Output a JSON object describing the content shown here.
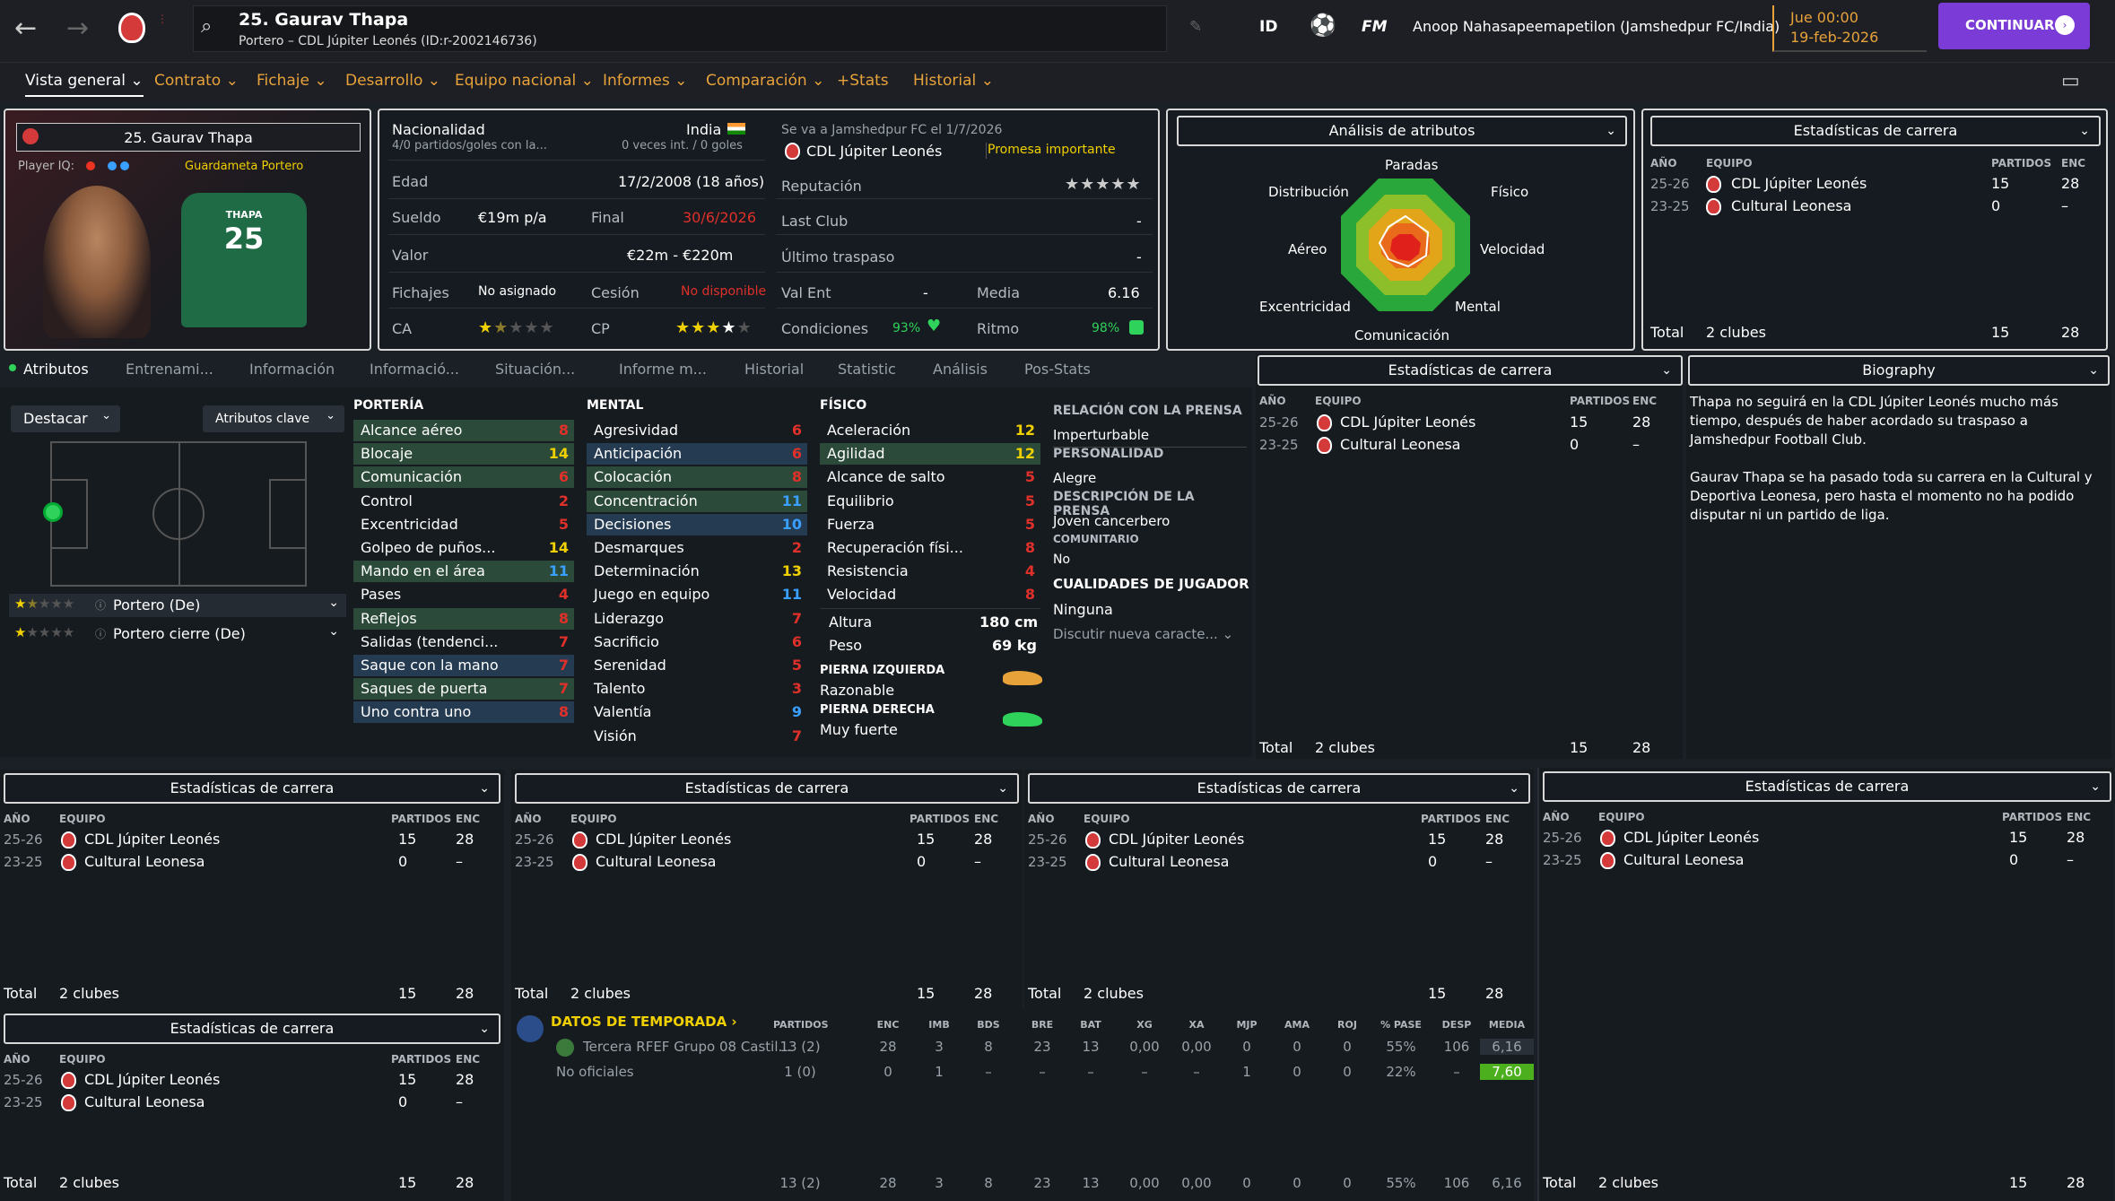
{
  "header": {
    "title": "25. Gaurav Thapa",
    "subtitle": "Portero – CDL Júpiter Leonés (ID:r-2002146736)",
    "id_label": "ID",
    "fm_label": "FM",
    "manager": "Anoop Nahasapeemapetilon (Jamshedpur FC/India)",
    "date_line1": "Jue 00:00",
    "date_line2": "19-feb-2026",
    "continue": "CONTINUAR"
  },
  "tabs": [
    "Vista general",
    "Contrato",
    "Fichaje",
    "Desarrollo",
    "Equipo nacional",
    "Informes",
    "Comparación",
    "+Stats",
    "Historial"
  ],
  "profile": {
    "name_box": "25. Gaurav Thapa",
    "player_iq": "Player IQ:",
    "role": "Guardameta Portero",
    "shirt_name": "THAPA",
    "shirt_number": "25"
  },
  "info": {
    "nat_label": "Nacionalidad",
    "nat_value": "India",
    "nat_sub": "4/0 partidos/goles con la...",
    "nat_sub2": "0 veces int. / 0 goles",
    "age_label": "Edad",
    "age_value": "17/2/2008 (18 años)",
    "wage_label": "Sueldo",
    "wage_value": "€19m p/a",
    "final_label": "Final",
    "final_value": "30/6/2026",
    "value_label": "Valor",
    "value_value": "€22m - €220m",
    "fichajes_label": "Fichajes",
    "fichajes_value": "No asignado",
    "cesion_label": "Cesión",
    "cesion_value": "No disponible",
    "ca_label": "CA",
    "cp_label": "CP",
    "transfer_line": "Se va a Jamshedpur FC el 1/7/2026",
    "club": "CDL Júpiter Leonés",
    "promise": "Promesa importante",
    "rep_label": "Reputación",
    "lastclub_label": "Last Club",
    "lastclub_value": "-",
    "lasttransfer_label": "Último traspaso",
    "lasttransfer_value": "-",
    "valent_label": "Val Ent",
    "valent_value": "-",
    "media_label": "Media",
    "media_value": "6.16",
    "cond_label": "Condiciones",
    "cond_value": "93%",
    "ritmo_label": "Ritmo",
    "ritmo_value": "98%"
  },
  "radar": {
    "title": "Análisis de atributos",
    "labels": [
      "Paradas",
      "Físico",
      "Velocidad",
      "Mental",
      "Comunicación",
      "Excentricidad",
      "Aéreo",
      "Distribución"
    ]
  },
  "career": {
    "title": "Estadísticas de carrera",
    "col_year": "AÑO",
    "col_team": "EQUIPO",
    "col_apps": "PARTIDOS",
    "col_enc": "ENC",
    "rows": [
      {
        "year": "25-26",
        "team": "CDL Júpiter Leonés",
        "apps": "15",
        "enc": "28"
      },
      {
        "year": "23-25",
        "team": "Cultural Leonesa",
        "apps": "0",
        "enc": "–"
      }
    ],
    "total_label": "Total",
    "total_clubs": "2 clubes",
    "total_apps": "15",
    "total_enc": "28"
  },
  "subtabs": [
    "Atributos",
    "Entrenami...",
    "Información",
    "Informació...",
    "Situación...",
    "Informe m...",
    "Historial",
    "Statistic",
    "Análisis",
    "Pos-Stats"
  ],
  "attrs_panel": {
    "highlight": "Destacar",
    "key_attrs": "Atributos clave",
    "role1": "Portero (De)",
    "role2": "Portero cierre (De)"
  },
  "porteria": {
    "title": "PORTERÍA",
    "items": [
      {
        "n": "Alcance aéreo",
        "v": "8",
        "c": "red",
        "h": "hl"
      },
      {
        "n": "Blocaje",
        "v": "14",
        "c": "yel",
        "h": "hl"
      },
      {
        "n": "Comunicación",
        "v": "6",
        "c": "red",
        "h": "hl"
      },
      {
        "n": "Control",
        "v": "2",
        "c": "red",
        "h": ""
      },
      {
        "n": "Excentricidad",
        "v": "5",
        "c": "red",
        "h": ""
      },
      {
        "n": "Golpeo de puños...",
        "v": "14",
        "c": "yel",
        "h": ""
      },
      {
        "n": "Mando en el área",
        "v": "11",
        "c": "blu",
        "h": "hl"
      },
      {
        "n": "Pases",
        "v": "4",
        "c": "red",
        "h": ""
      },
      {
        "n": "Reflejos",
        "v": "8",
        "c": "red",
        "h": "hl"
      },
      {
        "n": "Salidas (tendenci...",
        "v": "7",
        "c": "red",
        "h": ""
      },
      {
        "n": "Saque con la mano",
        "v": "7",
        "c": "red",
        "h": "hlb"
      },
      {
        "n": "Saques de puerta",
        "v": "7",
        "c": "red",
        "h": "hl"
      },
      {
        "n": "Uno contra uno",
        "v": "8",
        "c": "red",
        "h": "hlb"
      }
    ]
  },
  "mental": {
    "title": "MENTAL",
    "items": [
      {
        "n": "Agresividad",
        "v": "6",
        "c": "red",
        "h": ""
      },
      {
        "n": "Anticipación",
        "v": "6",
        "c": "red",
        "h": "hlb"
      },
      {
        "n": "Colocación",
        "v": "8",
        "c": "red",
        "h": "hl"
      },
      {
        "n": "Concentración",
        "v": "11",
        "c": "blu",
        "h": "hl"
      },
      {
        "n": "Decisiones",
        "v": "10",
        "c": "blu",
        "h": "hlb"
      },
      {
        "n": "Desmarques",
        "v": "2",
        "c": "red",
        "h": ""
      },
      {
        "n": "Determinación",
        "v": "13",
        "c": "yel",
        "h": ""
      },
      {
        "n": "Juego en equipo",
        "v": "11",
        "c": "blu",
        "h": ""
      },
      {
        "n": "Liderazgo",
        "v": "7",
        "c": "red",
        "h": ""
      },
      {
        "n": "Sacrificio",
        "v": "6",
        "c": "red",
        "h": ""
      },
      {
        "n": "Serenidad",
        "v": "5",
        "c": "red",
        "h": ""
      },
      {
        "n": "Talento",
        "v": "3",
        "c": "red",
        "h": ""
      },
      {
        "n": "Valentía",
        "v": "9",
        "c": "blu",
        "h": ""
      },
      {
        "n": "Visión",
        "v": "7",
        "c": "red",
        "h": ""
      }
    ]
  },
  "fisico": {
    "title": "FÍSICO",
    "items": [
      {
        "n": "Aceleración",
        "v": "12",
        "c": "yel",
        "h": ""
      },
      {
        "n": "Agilidad",
        "v": "12",
        "c": "yel",
        "h": "hl"
      },
      {
        "n": "Alcance de salto",
        "v": "5",
        "c": "red",
        "h": ""
      },
      {
        "n": "Equilibrio",
        "v": "5",
        "c": "red",
        "h": ""
      },
      {
        "n": "Fuerza",
        "v": "5",
        "c": "red",
        "h": ""
      },
      {
        "n": "Recuperación físi...",
        "v": "8",
        "c": "red",
        "h": ""
      },
      {
        "n": "Resistencia",
        "v": "4",
        "c": "red",
        "h": ""
      },
      {
        "n": "Velocidad",
        "v": "8",
        "c": "red",
        "h": ""
      }
    ],
    "height_label": "Altura",
    "height": "180 cm",
    "weight_label": "Peso",
    "weight": "69 kg",
    "left_foot_label": "PIERNA IZQUIERDA",
    "left_foot": "Razonable",
    "right_foot_label": "PIERNA DERECHA",
    "right_foot": "Muy fuerte"
  },
  "press": {
    "rel_label": "RELACIÓN CON LA PRENSA",
    "rel": "Imperturbable",
    "pers_label": "PERSONALIDAD",
    "pers": "Alegre",
    "desc_label": "DESCRIPCIÓN DE LA PRENSA",
    "desc": "Joven cancerbero",
    "com_label": "COMUNITARIO",
    "com": "No",
    "qual_label": "CUALIDADES DE JUGADOR",
    "qual": "Ninguna",
    "discuss": "Discutir nueva caracte..."
  },
  "bio": {
    "title": "Biography",
    "p1": "Thapa no seguirá en la CDL Júpiter Leonés mucho más tiempo, después de haber acordado su traspaso a Jamshedpur Football Club.",
    "p2": "Gaurav Thapa se ha pasado toda su carrera en la Cultural y Deportiva Leonesa, pero hasta el momento no ha podido disputar ni un partido de liga."
  },
  "season": {
    "title": "DATOS DE TEMPORADA",
    "cols": [
      "PARTIDOS",
      "ENC",
      "IMB",
      "BDS",
      "BRE",
      "BAT",
      "XG",
      "XA",
      "MJP",
      "AMA",
      "ROJ",
      "% PASE",
      "DESP",
      "MEDIA"
    ],
    "rows": [
      {
        "name": "Tercera RFEF Grupo 08 Castil...",
        "vals": [
          "13 (2)",
          "28",
          "3",
          "8",
          "23",
          "13",
          "0,00",
          "0,00",
          "0",
          "0",
          "0",
          "55%",
          "106",
          "6,16"
        ]
      },
      {
        "name": "No oficiales",
        "vals": [
          "1 (0)",
          "0",
          "1",
          "–",
          "–",
          "–",
          "–",
          "–",
          "1",
          "0",
          "0",
          "22%",
          "–",
          "7,60"
        ]
      }
    ],
    "total": [
      "13 (2)",
      "28",
      "3",
      "8",
      "23",
      "13",
      "0,00",
      "0,00",
      "0",
      "0",
      "0",
      "55%",
      "106",
      "6,16"
    ]
  }
}
